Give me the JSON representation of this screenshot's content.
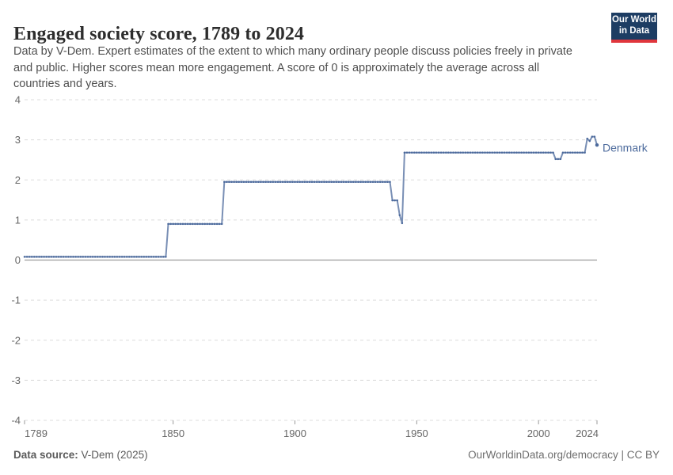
{
  "header": {
    "title": "Engaged society score, 1789 to 2024",
    "subtitle_lines": [
      "Data by V-Dem. Expert estimates of the extent to which many ordinary people discuss policies freely in private",
      "and public. Higher scores mean more engagement. A score of 0 is approximately the average across all",
      "countries and years."
    ],
    "logo": {
      "line1": "Our World",
      "line2": "in Data",
      "bg_color": "#1d3d63",
      "accent_color": "#e0363c"
    }
  },
  "footer": {
    "source_label": "Data source:",
    "source_value": "V-Dem (2025)",
    "attribution": "OurWorldinData.org/democracy | CC BY"
  },
  "chart_data": {
    "type": "line",
    "title": "Engaged society score, 1789 to 2024",
    "xlabel": "",
    "ylabel": "",
    "xlim": [
      1789,
      2024
    ],
    "ylim": [
      -4,
      4
    ],
    "yticks": [
      4,
      3,
      2,
      1,
      0,
      -1,
      -2,
      -3,
      -4
    ],
    "xticks": [
      1789,
      1850,
      1900,
      1950,
      2000,
      2024
    ],
    "grid": "horizontal dashed gridlines, solid zero line",
    "legend_position": "label at end of line",
    "colors": {
      "gridline": "#dcdcdc",
      "zero_line": "#9b9b9b",
      "tick_label": "#666666"
    },
    "series": [
      {
        "name": "Denmark",
        "color": "#4C6A9C",
        "segments": [
          {
            "from": 1789,
            "to": 1847,
            "value": 0.08
          },
          {
            "from": 1848,
            "to": 1870,
            "value": 0.9
          },
          {
            "from": 1871,
            "to": 1939,
            "value": 1.95
          },
          {
            "from": 1940,
            "to": 1942,
            "value": 1.49
          },
          {
            "from": 1943,
            "to": 1943,
            "value": 1.12
          },
          {
            "from": 1944,
            "to": 1944,
            "value": 0.92
          },
          {
            "from": 1945,
            "to": 2006,
            "value": 2.68
          },
          {
            "from": 2007,
            "to": 2009,
            "value": 2.52
          },
          {
            "from": 2010,
            "to": 2019,
            "value": 2.68
          },
          {
            "from": 2020,
            "to": 2020,
            "value": 3.03
          },
          {
            "from": 2021,
            "to": 2021,
            "value": 2.97
          },
          {
            "from": 2022,
            "to": 2023,
            "value": 3.08
          },
          {
            "from": 2024,
            "to": 2024,
            "value": 2.87
          }
        ]
      }
    ]
  }
}
